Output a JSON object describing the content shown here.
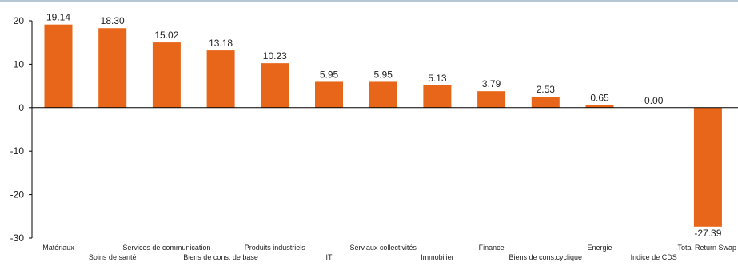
{
  "chart_data": {
    "type": "bar",
    "categories": [
      "Matériaux",
      "Soins de santé",
      "Services de communication",
      "Biens de cons. de base",
      "Produits industriels",
      "IT",
      "Serv.aux collectivités",
      "Immobilier",
      "Finance",
      "Biens de cons.cyclique",
      "Énergie",
      "Indice de CDS",
      "Total Return Swap"
    ],
    "values": [
      19.14,
      18.3,
      15.02,
      13.18,
      10.23,
      5.95,
      5.95,
      5.13,
      3.79,
      2.53,
      0.65,
      0.0,
      -27.39
    ],
    "value_labels": [
      "19.14",
      "18.30",
      "15.02",
      "13.18",
      "10.23",
      "5.95",
      "5.95",
      "5.13",
      "3.79",
      "2.53",
      "0.65",
      "0.00",
      "-27.39"
    ],
    "yticks": [
      "20",
      "10",
      "0",
      "-10",
      "-20",
      "-30"
    ],
    "ylim": [
      -30,
      20
    ],
    "title": "",
    "xlabel": "",
    "ylabel": "",
    "grid": false,
    "legend": "none",
    "colors": {
      "bar": "#E8661A",
      "axis": "#000000",
      "text": "#222222",
      "top_rule": "#9DB3C4"
    }
  }
}
